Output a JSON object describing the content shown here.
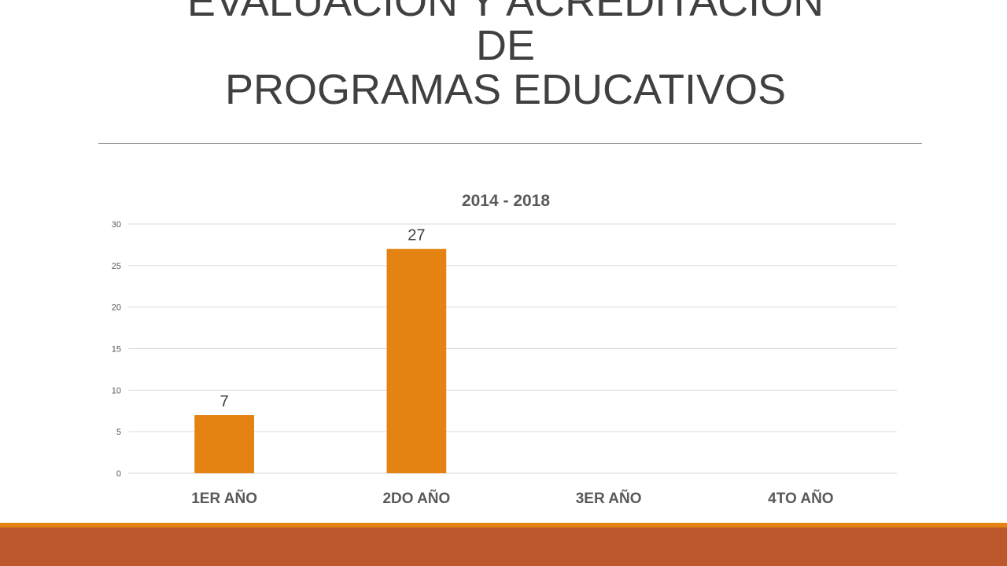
{
  "slide": {
    "title_lines": [
      "EVALUACIÓN Y ACREDITACIÓN",
      "DE",
      "PROGRAMAS EDUCATIVOS"
    ]
  },
  "colors": {
    "title": "#404040",
    "bar": "#e48312",
    "footer_thin": "#e48312",
    "footer_band": "#bd582c",
    "gridline": "#d9d9d9"
  },
  "chart_data": {
    "type": "bar",
    "title": "2014 - 2018",
    "categories": [
      "1ER AÑO",
      "2DO AÑO",
      "3ER AÑO",
      "4TO AÑO"
    ],
    "values": [
      7,
      27,
      null,
      null
    ],
    "data_labels": [
      "7",
      "27",
      "",
      ""
    ],
    "ylim": [
      0,
      30
    ],
    "yticks": [
      0,
      5,
      10,
      15,
      20,
      25,
      30
    ],
    "xlabel": "",
    "ylabel": "",
    "grid": true,
    "legend": "none"
  }
}
